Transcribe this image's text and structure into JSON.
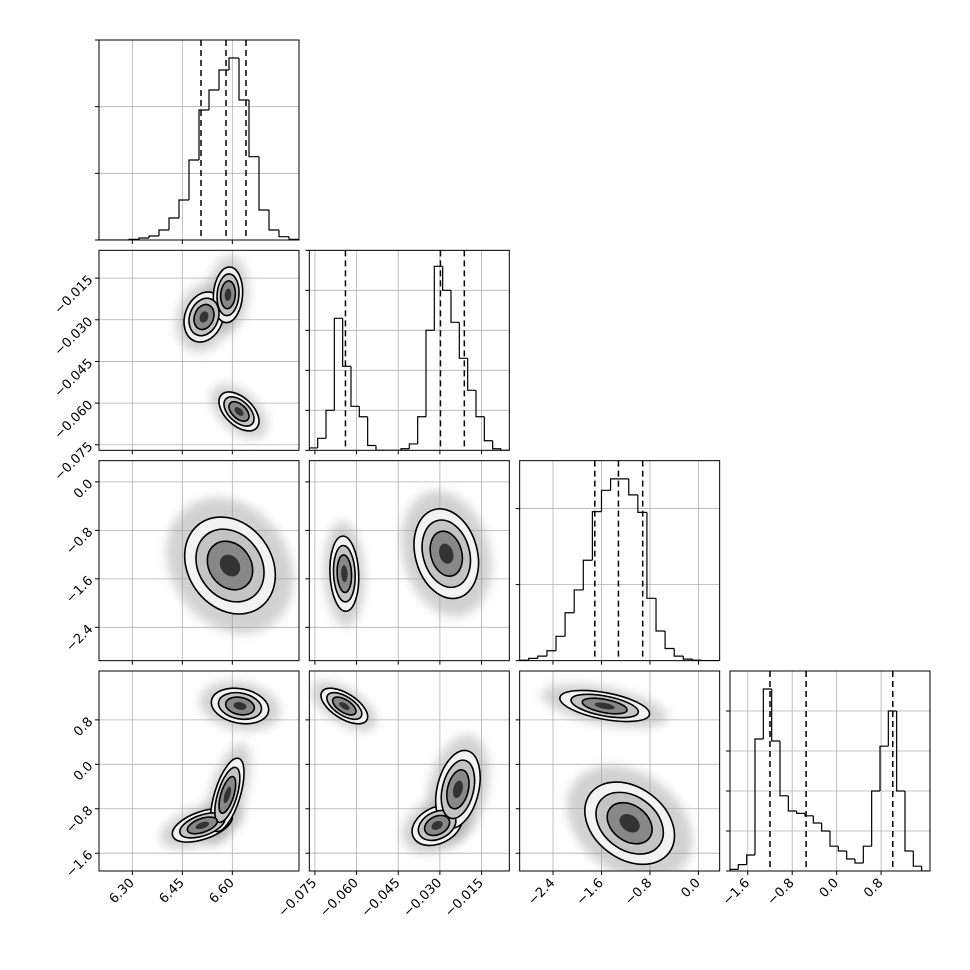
{
  "chart_data": {
    "type": "corner",
    "line_color": "#000000",
    "grid_color": "#b0b0b0",
    "grid": true,
    "parameters": [
      {
        "lim": [
          6.2,
          6.8
        ],
        "ticks": [
          {
            "value": 6.3,
            "label": "6.30"
          },
          6.45,
          {
            "value": 6.6,
            "label": "6.60"
          }
        ]
      },
      {
        "lim": [
          -0.077,
          -0.005
        ],
        "ticks": [
          {
            "value": -0.075,
            "label": "−0.075"
          },
          {
            "value": -0.06,
            "label": "−0.060"
          },
          {
            "value": -0.045,
            "label": "−0.045"
          },
          {
            "value": -0.03,
            "label": "−0.030"
          },
          {
            "value": -0.015,
            "label": "−0.015"
          }
        ]
      },
      {
        "lim": [
          -2.95,
          0.35
        ],
        "ticks": [
          {
            "value": -2.4,
            "label": "−2.4"
          },
          {
            "value": -1.6,
            "label": "−1.6"
          },
          {
            "value": -0.8,
            "label": "−0.8"
          },
          {
            "value": 0.0,
            "label": "0.0"
          }
        ]
      },
      {
        "lim": [
          -1.92,
          1.68
        ],
        "ticks": [
          {
            "value": -1.6,
            "label": "−1.6"
          },
          {
            "value": -0.8,
            "label": "−0.8"
          },
          {
            "value": 0.0,
            "label": "0.0"
          },
          0.8
        ]
      }
    ],
    "histograms": [
      {
        "bins": [
          6.2,
          6.23,
          6.26,
          6.29,
          6.32,
          6.35,
          6.38,
          6.41,
          6.44,
          6.47,
          6.5,
          6.53,
          6.56,
          6.59,
          6.62,
          6.65,
          6.68,
          6.71,
          6.74,
          6.77,
          6.8
        ],
        "counts": [
          0,
          0,
          0,
          10,
          30,
          60,
          150,
          330,
          600,
          1200,
          1950,
          2250,
          2550,
          2730,
          2100,
          1250,
          450,
          150,
          50,
          10
        ],
        "ylim": [
          0,
          3000
        ],
        "yticks": [
          0,
          1000,
          2000,
          3000
        ],
        "quantiles": [
          6.506,
          6.581,
          6.641
        ]
      },
      {
        "bins": [
          -0.077,
          -0.074,
          -0.071,
          -0.068,
          -0.065,
          -0.062,
          -0.059,
          -0.056,
          -0.053,
          -0.05,
          -0.047,
          -0.044,
          -0.041,
          -0.038,
          -0.035,
          -0.032,
          -0.029,
          -0.026,
          -0.023,
          -0.02,
          -0.017,
          -0.014,
          -0.011,
          -0.008,
          -0.005
        ],
        "counts": [
          30,
          150,
          500,
          1650,
          1050,
          550,
          420,
          60,
          0,
          0,
          0,
          20,
          80,
          420,
          1500,
          2300,
          2000,
          1600,
          1150,
          750,
          420,
          120,
          20,
          0
        ],
        "ylim": [
          0,
          2500
        ],
        "yticks": [
          0,
          500,
          1000,
          1500,
          2000,
          2500
        ],
        "quantiles": [
          -0.064,
          -0.0298,
          -0.0212
        ]
      },
      {
        "bins": [
          -2.95,
          -2.8,
          -2.65,
          -2.5,
          -2.35,
          -2.2,
          -2.05,
          -1.9,
          -1.75,
          -1.6,
          -1.45,
          -1.3,
          -1.15,
          -1,
          -0.85,
          -0.7,
          -0.55,
          -0.4,
          -0.25,
          -0.1,
          0.05,
          0.2,
          0.35
        ],
        "counts": [
          5,
          30,
          60,
          130,
          320,
          630,
          930,
          1320,
          1960,
          2240,
          2390,
          2390,
          2180,
          1950,
          820,
          390,
          160,
          60,
          20,
          5,
          0,
          0
        ],
        "ylim": [
          0,
          2630
        ],
        "yticks": [
          0,
          1000,
          2000
        ],
        "quantiles": [
          -1.71,
          -1.32,
          -0.92
        ]
      },
      {
        "bins": [
          -1.92,
          -1.77,
          -1.62,
          -1.47,
          -1.32,
          -1.17,
          -1.02,
          -0.87,
          -0.72,
          -0.57,
          -0.42,
          -0.27,
          -0.12,
          0.03,
          0.18,
          0.33,
          0.48,
          0.63,
          0.78,
          0.93,
          1.08,
          1.23,
          1.38,
          1.53,
          1.68
        ],
        "counts": [
          20,
          80,
          200,
          1650,
          2275,
          1625,
          940,
          750,
          720,
          690,
          600,
          500,
          310,
          250,
          150,
          100,
          310,
          1000,
          1560,
          2000,
          1000,
          250,
          60,
          0
        ],
        "ylim": [
          0,
          2500
        ],
        "yticks": [
          0,
          500,
          1000,
          1500,
          2000
        ],
        "quantiles": [
          -1.2,
          -0.55,
          1.01
        ]
      }
    ],
    "pairs": [
      [
        {
          "blobs": [
            {
              "x": 6.515,
              "y": -0.029,
              "sx": 0.03,
              "sy": 0.0045,
              "rho": 0.2
            },
            {
              "x": 6.587,
              "y": -0.021,
              "sx": 0.022,
              "sy": 0.005,
              "rho": 0.1
            },
            {
              "x": 6.62,
              "y": -0.063,
              "sx": 0.03,
              "sy": 0.0035,
              "rho": -0.5
            }
          ]
        }
      ],
      [
        {
          "blobs": [
            {
              "x": 6.593,
              "y": -1.38,
              "sx": 0.068,
              "sy": 0.4,
              "rho": -0.2
            }
          ]
        },
        {
          "blobs": [
            {
              "x": -0.0644,
              "y": -1.515,
              "sx": 0.0026,
              "sy": 0.31,
              "rho": -0.1
            },
            {
              "x": -0.0277,
              "y": -1.185,
              "sx": 0.0058,
              "sy": 0.37,
              "rho": -0.2
            }
          ]
        }
      ],
      [
        {
          "blobs": [
            {
              "x": 6.623,
              "y": 1.05,
              "sx": 0.043,
              "sy": 0.16,
              "rho": -0.2
            },
            {
              "x": 6.51,
              "y": -1.1,
              "sx": 0.045,
              "sy": 0.15,
              "rho": 0.5
            },
            {
              "x": 6.585,
              "y": -0.55,
              "sx": 0.025,
              "sy": 0.33,
              "rho": 0.6
            }
          ]
        },
        {
          "blobs": [
            {
              "x": -0.0644,
              "y": 1.05,
              "sx": 0.0042,
              "sy": 0.16,
              "rho": -0.6
            },
            {
              "x": -0.031,
              "y": -1.1,
              "sx": 0.0045,
              "sy": 0.18,
              "rho": 0.3
            },
            {
              "x": -0.0235,
              "y": -0.45,
              "sx": 0.004,
              "sy": 0.35,
              "rho": 0.3
            }
          ]
        },
        {
          "blobs": [
            {
              "x": -1.547,
              "y": 1.05,
              "sx": 0.37,
              "sy": 0.14,
              "rho": -0.5
            },
            {
              "x": -1.135,
              "y": -1.06,
              "sx": 0.37,
              "sy": 0.37,
              "rho": -0.3
            }
          ]
        }
      ]
    ]
  }
}
